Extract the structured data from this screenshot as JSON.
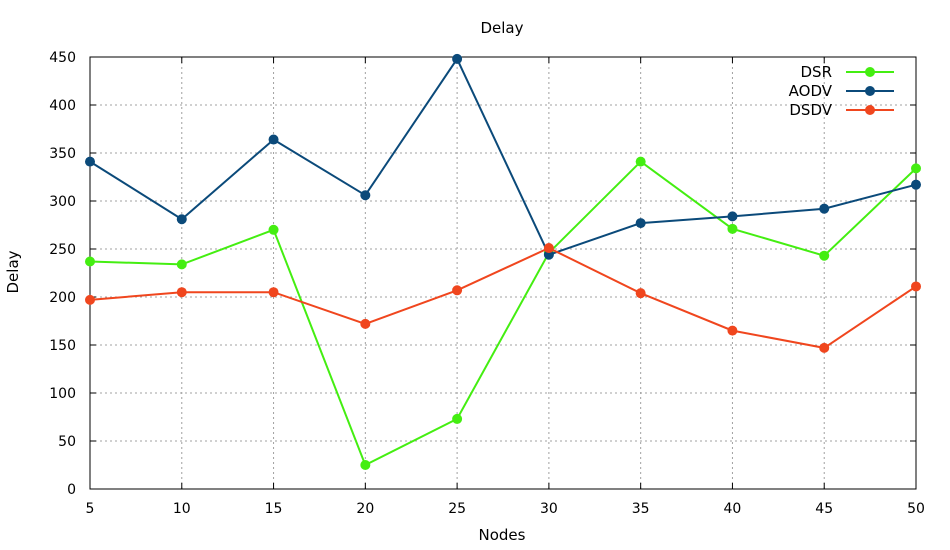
{
  "chart_data": {
    "type": "line",
    "title": "Delay",
    "xlabel": "Nodes",
    "ylabel": "Delay",
    "x": [
      5,
      10,
      15,
      20,
      25,
      30,
      35,
      40,
      45,
      50
    ],
    "xlim": [
      5,
      50
    ],
    "ylim": [
      0,
      450
    ],
    "xticks": [
      5,
      10,
      15,
      20,
      25,
      30,
      35,
      40,
      45,
      50
    ],
    "yticks": [
      0,
      50,
      100,
      150,
      200,
      250,
      300,
      350,
      400,
      450
    ],
    "grid": true,
    "legend_position": "top-right",
    "series": [
      {
        "name": "DSR",
        "color": "#44ee11",
        "values": [
          237,
          234,
          270,
          25,
          73,
          246,
          341,
          271,
          243,
          334
        ]
      },
      {
        "name": "AODV",
        "color": "#0b4a7a",
        "values": [
          341,
          281,
          364,
          306,
          448,
          244,
          277,
          284,
          292,
          317
        ]
      },
      {
        "name": "DSDV",
        "color": "#f0461e",
        "values": [
          197,
          205,
          205,
          172,
          207,
          251,
          204,
          165,
          147,
          211
        ]
      }
    ]
  }
}
